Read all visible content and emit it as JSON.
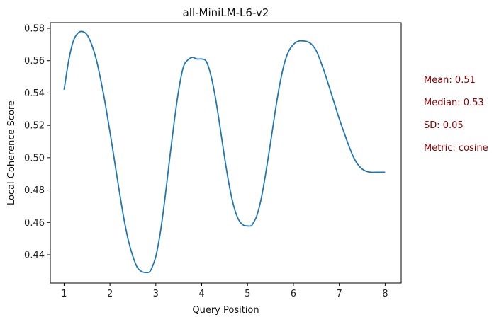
{
  "chart_data": {
    "type": "line",
    "title": "all-MiniLM-L6-v2",
    "xlabel": "Query Position",
    "ylabel": "Local Coherence Score",
    "xlim": [
      0.7,
      8.35
    ],
    "ylim": [
      0.4225,
      0.5835
    ],
    "xticks": [
      1,
      2,
      3,
      4,
      5,
      6,
      7,
      8
    ],
    "yticks": [
      0.44,
      0.46,
      0.48,
      0.5,
      0.52,
      0.54,
      0.56,
      0.58
    ],
    "grid": false,
    "series": [
      {
        "color": "#1f77b4",
        "x": [
          1.0,
          1.1,
          1.2,
          1.3,
          1.4,
          1.5,
          1.6,
          1.7,
          1.8,
          1.9,
          2.0,
          2.1,
          2.2,
          2.3,
          2.4,
          2.5,
          2.6,
          2.7,
          2.8,
          2.85,
          2.9,
          3.0,
          3.1,
          3.2,
          3.3,
          3.4,
          3.5,
          3.6,
          3.7,
          3.8,
          3.9,
          4.0,
          4.1,
          4.2,
          4.3,
          4.4,
          4.5,
          4.6,
          4.7,
          4.8,
          4.9,
          5.0,
          5.07,
          5.1,
          5.2,
          5.3,
          5.4,
          5.5,
          5.6,
          5.7,
          5.8,
          5.9,
          6.0,
          6.1,
          6.2,
          6.3,
          6.4,
          6.5,
          6.6,
          6.7,
          6.8,
          6.9,
          7.0,
          7.1,
          7.2,
          7.3,
          7.4,
          7.5,
          7.6,
          7.7,
          7.8,
          7.9,
          8.0
        ],
        "y": [
          0.542,
          0.56,
          0.572,
          0.577,
          0.578,
          0.576,
          0.57,
          0.561,
          0.548,
          0.533,
          0.516,
          0.498,
          0.48,
          0.463,
          0.449,
          0.439,
          0.432,
          0.4295,
          0.429,
          0.4292,
          0.431,
          0.439,
          0.454,
          0.475,
          0.499,
          0.522,
          0.542,
          0.556,
          0.5605,
          0.562,
          0.561,
          0.561,
          0.5595,
          0.551,
          0.537,
          0.519,
          0.5,
          0.483,
          0.47,
          0.462,
          0.4585,
          0.4578,
          0.4578,
          0.4585,
          0.464,
          0.475,
          0.491,
          0.509,
          0.528,
          0.545,
          0.558,
          0.566,
          0.57,
          0.572,
          0.5722,
          0.5718,
          0.57,
          0.566,
          0.559,
          0.551,
          0.542,
          0.533,
          0.524,
          0.516,
          0.508,
          0.501,
          0.496,
          0.493,
          0.4915,
          0.491,
          0.491,
          0.491,
          0.491
        ]
      }
    ]
  },
  "stats": {
    "mean": "Mean: 0.51",
    "median": "Median: 0.53",
    "sd": "SD: 0.05",
    "metric": "Metric: cosine"
  }
}
